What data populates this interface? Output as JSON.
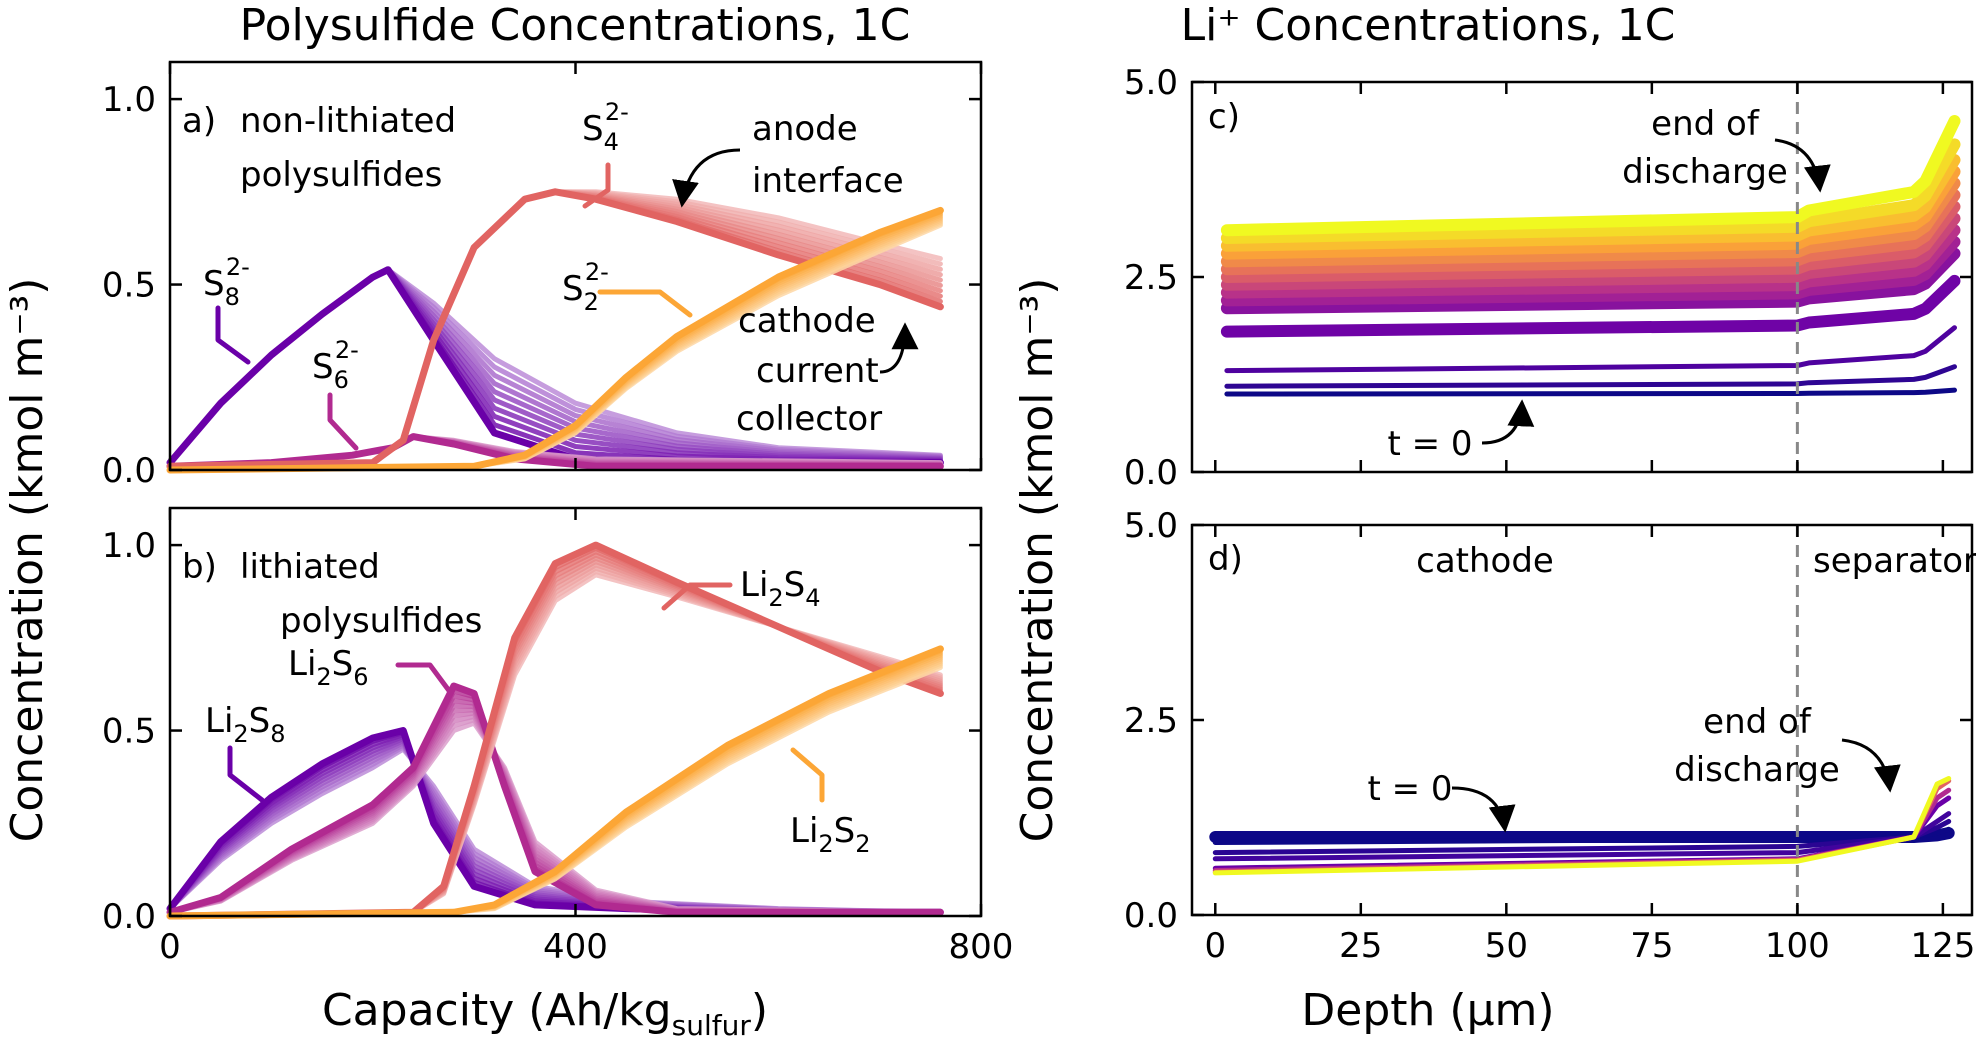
{
  "titles": {
    "left": "Polysulfide Concentrations, 1C",
    "right": "Li⁺ Concentrations, 1C"
  },
  "axes": {
    "left_ylabel": "Concentration (kmol m⁻³)",
    "right_ylabel": "Concentration (kmol m⁻³)",
    "left_xlabel_main": "Capacity (Ah/kg",
    "left_xlabel_sub": "sulfur",
    "left_xlabel_close": ")",
    "right_xlabel": "Depth (µm)"
  },
  "chart_data": [
    {
      "panel": "a",
      "type": "line",
      "panel_label": "a)",
      "header": [
        "non-lithiated",
        "polysulfides"
      ],
      "xlim": [
        0,
        800
      ],
      "ylim": [
        0,
        1.1
      ],
      "xticks": [
        0,
        400,
        800
      ],
      "yticks": [
        0.0,
        0.5,
        1.0
      ],
      "ytick_labels": [
        "0.0",
        "0.5",
        "1.0"
      ],
      "series": [
        {
          "name": "S8 2-",
          "color": "#6a00a8",
          "x": [
            0,
            50,
            100,
            150,
            200,
            215,
            260,
            320,
            400,
            500,
            600,
            760
          ],
          "y": [
            0.02,
            0.18,
            0.31,
            0.42,
            0.52,
            0.54,
            0.35,
            0.1,
            0.03,
            0.02,
            0.02,
            0.02
          ],
          "y_spread_end": [
            0.02,
            0.18,
            0.31,
            0.42,
            0.52,
            0.54,
            0.45,
            0.3,
            0.18,
            0.1,
            0.06,
            0.04
          ]
        },
        {
          "name": "S6 2-",
          "color": "#b12a90",
          "x": [
            0,
            100,
            180,
            220,
            240,
            280,
            340,
            420,
            760
          ],
          "y": [
            0.01,
            0.02,
            0.04,
            0.06,
            0.09,
            0.07,
            0.03,
            0.01,
            0.01
          ],
          "y_spread_end": [
            0.01,
            0.02,
            0.04,
            0.06,
            0.09,
            0.08,
            0.05,
            0.03,
            0.02
          ]
        },
        {
          "name": "S4 2-",
          "color": "#e16462",
          "x": [
            0,
            200,
            230,
            260,
            300,
            350,
            380,
            420,
            500,
            600,
            700,
            760
          ],
          "y": [
            0.01,
            0.02,
            0.08,
            0.35,
            0.6,
            0.73,
            0.75,
            0.73,
            0.67,
            0.58,
            0.5,
            0.44
          ],
          "y_spread_end": [
            0.01,
            0.02,
            0.08,
            0.35,
            0.6,
            0.73,
            0.75,
            0.75,
            0.73,
            0.68,
            0.61,
            0.57
          ]
        },
        {
          "name": "S2 2-",
          "color": "#fca636",
          "x": [
            0,
            300,
            350,
            400,
            450,
            500,
            600,
            700,
            760
          ],
          "y": [
            0.0,
            0.01,
            0.04,
            0.12,
            0.25,
            0.36,
            0.52,
            0.64,
            0.7
          ],
          "y_spread_end": [
            0.0,
            0.01,
            0.03,
            0.1,
            0.22,
            0.32,
            0.47,
            0.59,
            0.66
          ]
        }
      ],
      "annotations": [
        {
          "text": "anode",
          "id": "anode"
        },
        {
          "text": "interface",
          "id": "interface"
        },
        {
          "text": "cathode",
          "id": "cathode"
        },
        {
          "text": "current",
          "id": "current"
        },
        {
          "text": "collector",
          "id": "collector"
        }
      ],
      "series_labels": [
        {
          "base": "S",
          "sub": "8",
          "sup": "2-"
        },
        {
          "base": "S",
          "sub": "6",
          "sup": "2-"
        },
        {
          "base": "S",
          "sub": "4",
          "sup": "2-"
        },
        {
          "base": "S",
          "sub": "2",
          "sup": "2-"
        }
      ]
    },
    {
      "panel": "b",
      "type": "line",
      "panel_label": "b)",
      "header": [
        "lithiated",
        "polysulfides"
      ],
      "xlim": [
        0,
        800
      ],
      "ylim": [
        0,
        1.1
      ],
      "xticks": [
        0,
        400,
        800
      ],
      "xtick_labels": [
        "0",
        "400",
        "800"
      ],
      "yticks": [
        0.0,
        0.5,
        1.0
      ],
      "ytick_labels": [
        "0.0",
        "0.5",
        "1.0"
      ],
      "series": [
        {
          "name": "Li2S8",
          "color": "#6a00a8",
          "x": [
            0,
            50,
            100,
            150,
            200,
            230,
            260,
            300,
            360,
            450,
            600,
            760
          ],
          "y": [
            0.02,
            0.2,
            0.32,
            0.41,
            0.48,
            0.5,
            0.25,
            0.08,
            0.03,
            0.02,
            0.01,
            0.01
          ],
          "y_spread_end": [
            0.02,
            0.15,
            0.25,
            0.33,
            0.4,
            0.45,
            0.35,
            0.18,
            0.08,
            0.04,
            0.02,
            0.01
          ]
        },
        {
          "name": "Li2S6",
          "color": "#b12a90",
          "x": [
            0,
            50,
            120,
            200,
            240,
            280,
            300,
            330,
            360,
            420,
            500,
            760
          ],
          "y": [
            0.01,
            0.05,
            0.18,
            0.3,
            0.4,
            0.62,
            0.6,
            0.35,
            0.12,
            0.03,
            0.01,
            0.01
          ],
          "y_spread_end": [
            0.01,
            0.04,
            0.15,
            0.25,
            0.35,
            0.5,
            0.52,
            0.4,
            0.2,
            0.07,
            0.02,
            0.01
          ]
        },
        {
          "name": "Li2S4",
          "color": "#e16462",
          "x": [
            0,
            240,
            270,
            300,
            340,
            380,
            420,
            500,
            600,
            700,
            760
          ],
          "y": [
            0.0,
            0.01,
            0.08,
            0.35,
            0.75,
            0.95,
            1.0,
            0.9,
            0.78,
            0.66,
            0.6
          ],
          "y_spread_end": [
            0.0,
            0.01,
            0.06,
            0.3,
            0.65,
            0.85,
            0.92,
            0.86,
            0.78,
            0.7,
            0.65
          ]
        },
        {
          "name": "Li2S2",
          "color": "#fca636",
          "x": [
            0,
            280,
            320,
            380,
            450,
            550,
            650,
            760
          ],
          "y": [
            0.0,
            0.01,
            0.03,
            0.12,
            0.28,
            0.46,
            0.6,
            0.72
          ],
          "y_spread_end": [
            0.0,
            0.01,
            0.02,
            0.1,
            0.24,
            0.41,
            0.55,
            0.67
          ]
        }
      ],
      "series_labels": [
        {
          "pre": "Li",
          "sub1": "2",
          "mid": "S",
          "sub2": "8"
        },
        {
          "pre": "Li",
          "sub1": "2",
          "mid": "S",
          "sub2": "6"
        },
        {
          "pre": "Li",
          "sub1": "2",
          "mid": "S",
          "sub2": "4"
        },
        {
          "pre": "Li",
          "sub1": "2",
          "mid": "S",
          "sub2": "2"
        }
      ]
    },
    {
      "panel": "c",
      "type": "line",
      "panel_label": "c)",
      "xlim": [
        -4,
        130
      ],
      "ylim": [
        0,
        5.0
      ],
      "xticks": [
        0,
        25,
        50,
        75,
        100,
        125
      ],
      "yticks": [
        0.0,
        2.5,
        5.0
      ],
      "ytick_labels": [
        "0.0",
        "2.5",
        "5.0"
      ],
      "separator_depth": 100,
      "depth_x": [
        2,
        100,
        102,
        120,
        122,
        127
      ],
      "profiles_y_at_2um": [
        1.0,
        1.1,
        1.3,
        1.8,
        2.1,
        2.2,
        2.3,
        2.4,
        2.5,
        2.6,
        2.7,
        2.8,
        2.9,
        3.0,
        3.1
      ],
      "profile_rise_at_127um": [
        0.05,
        0.25,
        0.55,
        0.65,
        0.7,
        0.75,
        0.8,
        0.85,
        0.9,
        0.95,
        1.0,
        1.05,
        1.1,
        1.2,
        1.4
      ],
      "colormap": [
        "#0d0887",
        "#6a00a8",
        "#b12a90",
        "#e16462",
        "#fca636",
        "#f0f921"
      ],
      "annotations": [
        {
          "text": "end of",
          "id": "eod1"
        },
        {
          "text": "discharge",
          "id": "eod2"
        },
        {
          "text": "t = 0",
          "id": "t0"
        }
      ]
    },
    {
      "panel": "d",
      "type": "line",
      "panel_label": "d)",
      "xlim": [
        -4,
        130
      ],
      "ylim": [
        0,
        5.0
      ],
      "xticks": [
        0,
        25,
        50,
        75,
        100,
        125
      ],
      "xtick_labels": [
        "0",
        "25",
        "50",
        "75",
        "100",
        "125"
      ],
      "yticks": [
        0.0,
        2.5,
        5.0
      ],
      "ytick_labels": [
        "0.0",
        "2.5",
        "5.0"
      ],
      "separator_depth": 100,
      "depth_x": [
        0,
        100,
        120,
        124,
        126
      ],
      "profiles": [
        {
          "y": [
            1.0,
            1.0,
            1.0,
            1.02,
            1.05
          ],
          "color": "#0d0887"
        },
        {
          "y": [
            0.93,
            0.97,
            1.0,
            1.05,
            1.1
          ],
          "color": "#0d0887"
        },
        {
          "y": [
            0.8,
            0.88,
            1.0,
            1.12,
            1.2
          ],
          "color": "#2a0593"
        },
        {
          "y": [
            0.72,
            0.8,
            1.0,
            1.2,
            1.3
          ],
          "color": "#41049d"
        },
        {
          "y": [
            0.6,
            0.72,
            1.0,
            1.4,
            1.5
          ],
          "color": "#6a00a8"
        },
        {
          "y": [
            0.57,
            0.71,
            1.0,
            1.5,
            1.6
          ],
          "color": "#b12a90"
        },
        {
          "y": [
            0.55,
            0.7,
            1.0,
            1.62,
            1.72
          ],
          "color": "#e16462"
        },
        {
          "y": [
            0.54,
            0.69,
            1.0,
            1.68,
            1.75
          ],
          "color": "#f0f921"
        }
      ],
      "annotations": [
        {
          "text": "cathode",
          "id": "cathode"
        },
        {
          "text": "separator",
          "id": "separator"
        },
        {
          "text": "t = 0",
          "id": "t0"
        },
        {
          "text": "end of",
          "id": "eod1"
        },
        {
          "text": "discharge",
          "id": "eod2"
        }
      ]
    }
  ]
}
